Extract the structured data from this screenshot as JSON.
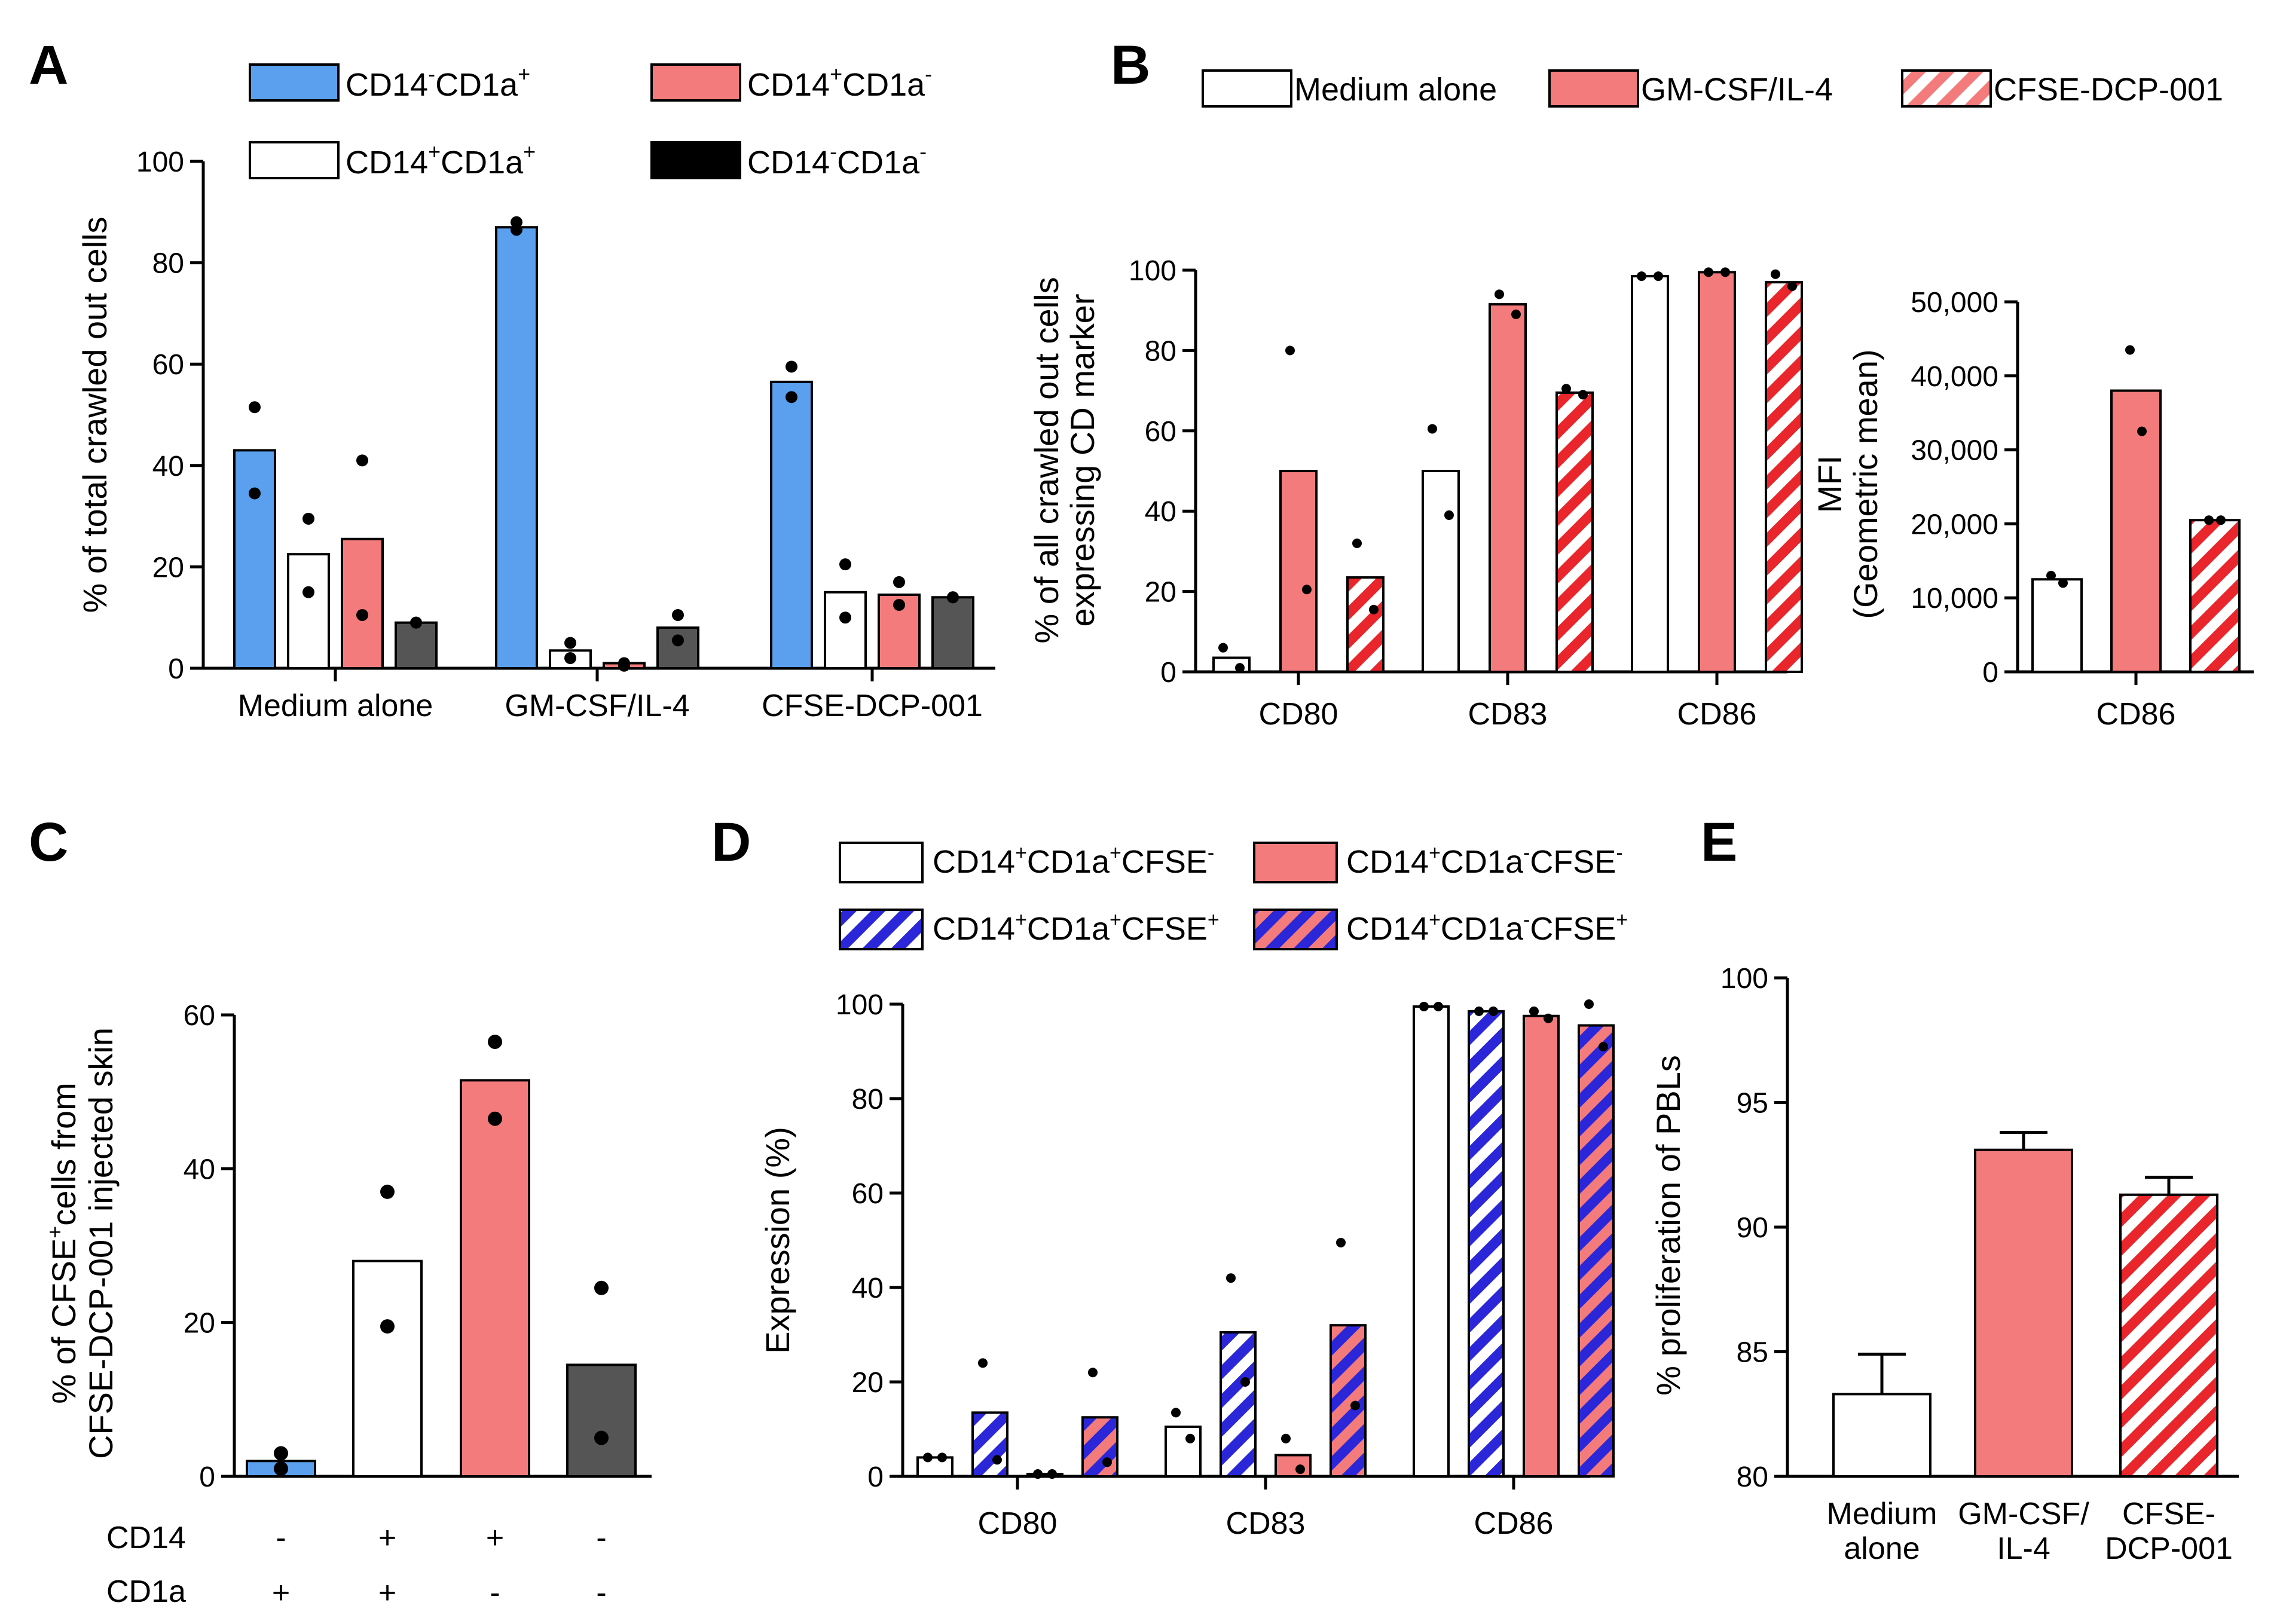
{
  "figure": {
    "panels": [
      "A",
      "B",
      "C",
      "D",
      "E"
    ]
  },
  "colors": {
    "blue": "#5aa0ee",
    "red": "#f47b7b",
    "white": "#ffffff",
    "dark": "#555555",
    "black": "#000000",
    "stripe_red": "#e8262b",
    "stripe_blue": "#2b27d8"
  },
  "chart_data": [
    {
      "panel": "A",
      "type": "bar",
      "title": "",
      "xlabel": "",
      "ylabel": "% of total crawled out cells",
      "ylim": [
        0,
        100
      ],
      "yticks": [
        "0",
        "20",
        "40",
        "60",
        "80",
        "100"
      ],
      "categories": [
        "Medium alone",
        "GM-CSF/IL-4",
        "CFSE-DCP-001"
      ],
      "legend": [
        {
          "label_main": "CD14",
          "sup1": "-",
          "mid": "CD1a",
          "sup2": "+"
        },
        {
          "label_main": "CD14",
          "sup1": "+",
          "mid": "CD1a",
          "sup2": "-"
        },
        {
          "label_main": "CD14",
          "sup1": "+",
          "mid": "CD1a",
          "sup2": "+"
        },
        {
          "label_main": "CD14",
          "sup1": "-",
          "mid": "CD1a",
          "sup2": "-"
        }
      ],
      "series": [
        {
          "name": "CD14-CD1a+",
          "style": "blue",
          "values": [
            43,
            87,
            56.5
          ],
          "points": [
            [
              51.5,
              34.5
            ],
            [
              88,
              86.5
            ],
            [
              59.5,
              53.5
            ]
          ]
        },
        {
          "name": "CD14+CD1a+",
          "style": "white",
          "values": [
            22.5,
            3.5,
            15
          ],
          "points": [
            [
              29.5,
              15
            ],
            [
              5,
              2
            ],
            [
              20.5,
              10
            ]
          ]
        },
        {
          "name": "CD14+CD1a-",
          "style": "red",
          "values": [
            25.5,
            1,
            14.5
          ],
          "points": [
            [
              41,
              10.5
            ],
            [
              1,
              0.5
            ],
            [
              17,
              12.5
            ]
          ]
        },
        {
          "name": "CD14-CD1a-",
          "style": "dark",
          "values": [
            9,
            8,
            14
          ],
          "points": [
            [
              9,
              9
            ],
            [
              10.5,
              5.5
            ],
            [
              14,
              14
            ]
          ]
        }
      ]
    },
    {
      "panel": "B",
      "type": "bar",
      "title": "",
      "xlabel": "",
      "ylabel": "% of all crawled out cells expressing CD marker",
      "ylabel_lines": [
        "% of all crawled out cells",
        "expressing CD marker"
      ],
      "ylim": [
        0,
        100
      ],
      "yticks": [
        "0",
        "20",
        "40",
        "60",
        "80",
        "100"
      ],
      "categories": [
        "CD80",
        "CD83",
        "CD86"
      ],
      "legend": [
        "Medium alone",
        "GM-CSF/IL-4",
        "CFSE-DCP-001"
      ],
      "series": [
        {
          "name": "Medium alone",
          "style": "white",
          "values": [
            3.5,
            50,
            98.5
          ],
          "points": [
            [
              6,
              1
            ],
            [
              60.5,
              39
            ],
            [
              98.5,
              98.5
            ]
          ]
        },
        {
          "name": "GM-CSF/IL-4",
          "style": "red",
          "values": [
            50,
            91.5,
            99.5
          ],
          "points": [
            [
              80,
              20.5
            ],
            [
              94,
              89
            ],
            [
              99.5,
              99.5
            ]
          ]
        },
        {
          "name": "CFSE-DCP-001",
          "style": "stripe_red",
          "values": [
            23.5,
            69.5,
            97
          ],
          "points": [
            [
              32,
              15.5
            ],
            [
              70.5,
              69
            ],
            [
              99,
              96
            ]
          ]
        }
      ]
    },
    {
      "panel": "B-MFI",
      "type": "bar",
      "title": "",
      "xlabel": "",
      "ylabel": "MFI (Geometric mean)",
      "ylabel_lines": [
        "MFI",
        "(Geometric mean)"
      ],
      "ylim": [
        0,
        50000
      ],
      "yticks": [
        "0",
        "10,000",
        "20,000",
        "30,000",
        "40,000",
        "50,000"
      ],
      "categories": [
        "CD86"
      ],
      "series": [
        {
          "name": "Medium alone",
          "style": "white",
          "values": [
            12500
          ],
          "points": [
            [
              13000,
              12000
            ]
          ]
        },
        {
          "name": "GM-CSF/IL-4",
          "style": "red",
          "values": [
            38000
          ],
          "points": [
            [
              43500,
              32500
            ]
          ]
        },
        {
          "name": "CFSE-DCP-001",
          "style": "stripe_red",
          "values": [
            20500
          ],
          "points": [
            [
              20500,
              20500
            ]
          ]
        }
      ]
    },
    {
      "panel": "C",
      "type": "bar",
      "title": "",
      "xlabel": "",
      "ylabel": "% of CFSE+cells from CFSE-DCP-001 injected skin",
      "ylabel_line1_a": "% of CFSE",
      "ylabel_line1_sup": "+",
      "ylabel_line1_b": "cells from",
      "ylabel_line2": "CFSE-DCP-001 injected skin",
      "ylim": [
        0,
        60
      ],
      "yticks": [
        "0",
        "20",
        "40",
        "60"
      ],
      "row_labels": [
        "CD14",
        "CD1a"
      ],
      "cd14_signs": [
        "-",
        "+",
        "+",
        "-"
      ],
      "cd1a_signs": [
        "+",
        "+",
        "-",
        "-"
      ],
      "bars": [
        {
          "style": "blue",
          "value": 2,
          "points": [
            3,
            1
          ]
        },
        {
          "style": "white",
          "value": 28,
          "points": [
            37,
            19.5
          ]
        },
        {
          "style": "red",
          "value": 51.5,
          "points": [
            56.5,
            46.5
          ]
        },
        {
          "style": "dark",
          "value": 14.5,
          "points": [
            24.5,
            5
          ]
        }
      ]
    },
    {
      "panel": "D",
      "type": "bar",
      "title": "",
      "xlabel": "",
      "ylabel": "Expression (%)",
      "ylim": [
        0,
        100
      ],
      "yticks": [
        "0",
        "20",
        "40",
        "60",
        "80",
        "100"
      ],
      "categories": [
        "CD80",
        "CD83",
        "CD86"
      ],
      "legend": [
        {
          "a": "CD14",
          "s1": "+",
          "b": "CD1a",
          "s2": "+",
          "c": "CFSE",
          "s3": "-"
        },
        {
          "a": "CD14",
          "s1": "+",
          "b": "CD1a",
          "s2": "-",
          "c": "CFSE",
          "s3": "-"
        },
        {
          "a": "CD14",
          "s1": "+",
          "b": "CD1a",
          "s2": "+",
          "c": "CFSE",
          "s3": "+"
        },
        {
          "a": "CD14",
          "s1": "+",
          "b": "CD1a",
          "s2": "-",
          "c": "CFSE",
          "s3": "+"
        }
      ],
      "series": [
        {
          "name": "CD14+CD1a+CFSE-",
          "style": "white",
          "values": [
            4,
            10.5,
            99.5
          ],
          "points": [
            [
              4,
              4
            ],
            [
              13.5,
              8
            ],
            [
              99.5,
              99.5
            ]
          ]
        },
        {
          "name": "CD14+CD1a+CFSE+",
          "style": "stripe_blue",
          "values": [
            13.5,
            30.5,
            98.5
          ],
          "points": [
            [
              24,
              3.5
            ],
            [
              42,
              20
            ],
            [
              98.5,
              98.5
            ]
          ]
        },
        {
          "name": "CD14+CD1a-CFSE-",
          "style": "red",
          "values": [
            0.5,
            4.5,
            97.5
          ],
          "points": [
            [
              0.5,
              0.5
            ],
            [
              8,
              1.5
            ],
            [
              98.5,
              97
            ]
          ]
        },
        {
          "name": "CD14+CD1a-CFSE+",
          "style": "stripe_red_blue",
          "values": [
            12.5,
            32,
            95.5
          ],
          "points": [
            [
              22,
              3
            ],
            [
              49.5,
              15
            ],
            [
              100,
              91
            ]
          ]
        }
      ]
    },
    {
      "panel": "E",
      "type": "bar",
      "title": "",
      "xlabel": "",
      "ylabel": "% proliferation of PBLs",
      "ylim": [
        80,
        100
      ],
      "yticks": [
        "80",
        "85",
        "90",
        "95",
        "100"
      ],
      "categories": [
        [
          "Medium",
          "alone"
        ],
        [
          "GM-CSF/",
          "IL-4"
        ],
        [
          "CFSE-",
          "DCP-001"
        ]
      ],
      "bars": [
        {
          "style": "white",
          "value": 83.3,
          "error": 1.6
        },
        {
          "style": "red",
          "value": 93.1,
          "error": 0.7
        },
        {
          "style": "stripe_red",
          "value": 91.3,
          "error": 0.7
        }
      ]
    }
  ]
}
